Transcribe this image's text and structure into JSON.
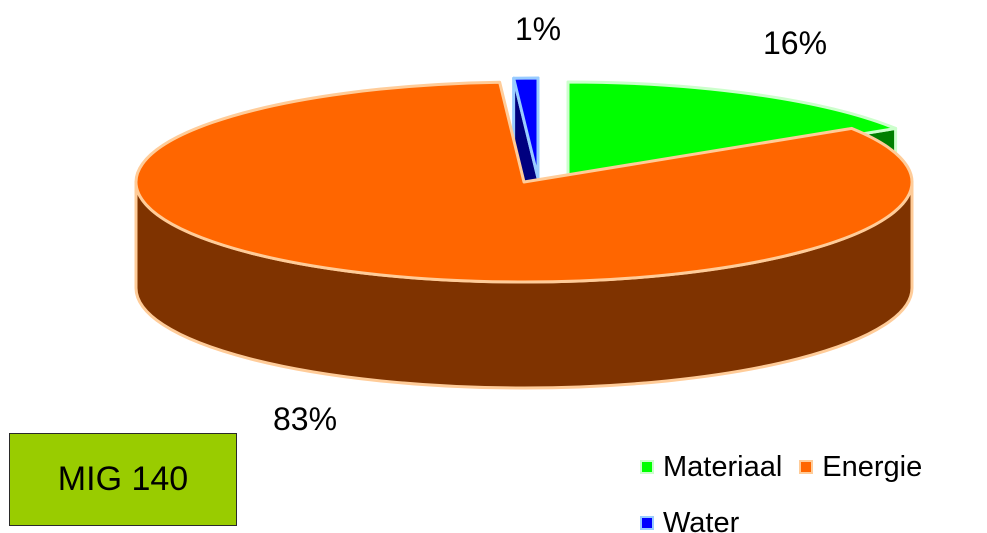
{
  "chart_data": {
    "type": "pie",
    "style": "3d-exploded",
    "title": "",
    "slices": [
      {
        "label": "Materiaal",
        "value": 16,
        "value_label": "16%",
        "color": "#00ff00",
        "side_color": "#007f00",
        "outline": "#ccffcc"
      },
      {
        "label": "Energie",
        "value": 83,
        "value_label": "83%",
        "color": "#ff6600",
        "side_color": "#7f3300",
        "outline": "#ffcc99"
      },
      {
        "label": "Water",
        "value": 1,
        "value_label": "1%",
        "color": "#0000ff",
        "side_color": "#00007f",
        "outline": "#99ccff"
      }
    ],
    "legend_placement": "bottom-right"
  },
  "badge": {
    "text": "MIG 140",
    "color": "#99cc00"
  }
}
